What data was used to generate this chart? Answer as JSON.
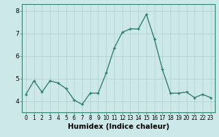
{
  "x": [
    0,
    1,
    2,
    3,
    4,
    5,
    6,
    7,
    8,
    9,
    10,
    11,
    12,
    13,
    14,
    15,
    16,
    17,
    18,
    19,
    20,
    21,
    22,
    23
  ],
  "y": [
    4.3,
    4.9,
    4.4,
    4.9,
    4.8,
    4.55,
    4.05,
    3.85,
    4.35,
    4.35,
    5.25,
    6.35,
    7.05,
    7.2,
    7.2,
    7.85,
    6.75,
    5.4,
    4.35,
    4.35,
    4.4,
    4.15,
    4.3,
    4.15
  ],
  "line_color": "#2e7d6e",
  "marker": "+",
  "marker_size": 3.5,
  "bg_color": "#cce8e8",
  "grid_color": "#b0cccc",
  "xlabel": "Humidex (Indice chaleur)",
  "xlabel_fontsize": 7.5,
  "ylim": [
    3.5,
    8.3
  ],
  "yticks": [
    4,
    5,
    6,
    7,
    8
  ],
  "xtick_fontsize": 5.5,
  "ytick_fontsize": 6.5,
  "spine_color": "#2e7d6e",
  "lw": 1.0
}
